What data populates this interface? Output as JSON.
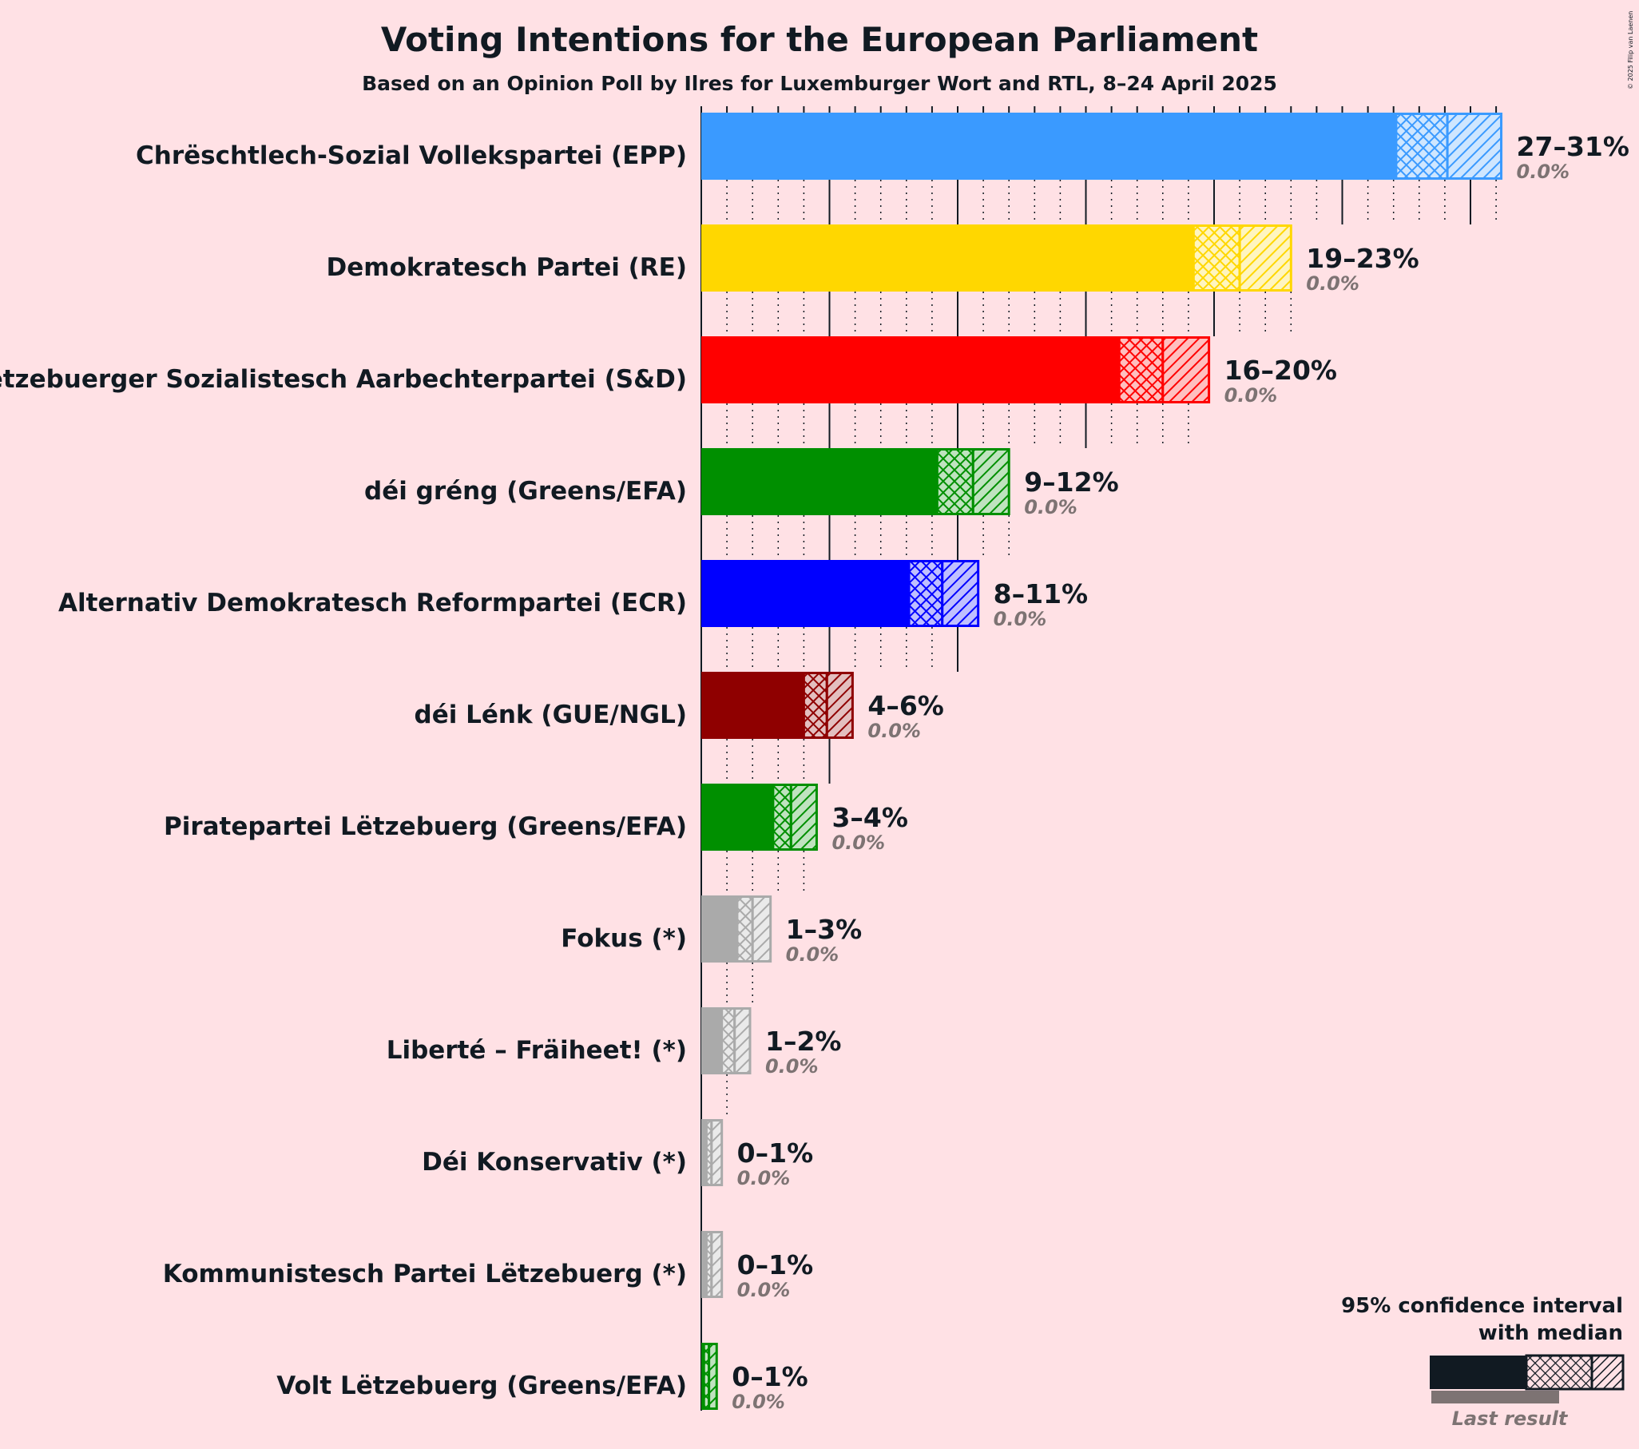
{
  "chart_data": {
    "type": "bar",
    "orientation": "horizontal",
    "title": "Voting Intentions for the European Parliament",
    "subtitle": "Based on an Opinion Poll by Ilres for Luxemburger Wort and RTL, 8–24 April 2025",
    "copyright": "© 2025 Filip van Laenen",
    "xlim": [
      0,
      31.5
    ],
    "grid": true,
    "legend": {
      "placement": "bottom-right",
      "line1": "95% confidence interval",
      "line2": "with median",
      "last_result": "Last result"
    },
    "series": [
      {
        "name": "Chrëschtlech-Sozial Vollekspartei (EPP)",
        "color": "#3A9AFF",
        "ci_low": 27.1,
        "median": 29.1,
        "ci_high": 31.2,
        "range_label": "27–31%",
        "last_result_label": "0.0%"
      },
      {
        "name": "Demokratesch Partei (RE)",
        "color": "#FFD700",
        "ci_low": 19.2,
        "median": 21.0,
        "ci_high": 23.0,
        "range_label": "19–23%",
        "last_result_label": "0.0%"
      },
      {
        "name": "Lëtzebuerger Sozialistesch Aarbechterpartei (S&D)",
        "color": "#FF0000",
        "ci_low": 16.3,
        "median": 18.0,
        "ci_high": 19.8,
        "range_label": "16–20%",
        "last_result_label": "0.0%"
      },
      {
        "name": "déi gréng (Greens/EFA)",
        "color": "#008F00",
        "ci_low": 9.2,
        "median": 10.6,
        "ci_high": 12.0,
        "range_label": "9–12%",
        "last_result_label": "0.0%"
      },
      {
        "name": "Alternativ Demokratesch Reformpartei (ECR)",
        "color": "#0000FF",
        "ci_low": 8.1,
        "median": 9.4,
        "ci_high": 10.8,
        "range_label": "8–11%",
        "last_result_label": "0.0%"
      },
      {
        "name": "déi Lénk (GUE/NGL)",
        "color": "#8F0000",
        "ci_low": 4.0,
        "median": 4.9,
        "ci_high": 5.9,
        "range_label": "4–6%",
        "last_result_label": "0.0%"
      },
      {
        "name": "Piratepartei Lëtzebuerg (Greens/EFA)",
        "color": "#008F00",
        "ci_low": 2.8,
        "median": 3.5,
        "ci_high": 4.5,
        "range_label": "3–4%",
        "last_result_label": "0.0%"
      },
      {
        "name": "Fokus (*)",
        "color": "#AAAAAA",
        "ci_low": 1.4,
        "median": 2.0,
        "ci_high": 2.7,
        "range_label": "1–3%",
        "last_result_label": "0.0%"
      },
      {
        "name": "Liberté – Fräiheet! (*)",
        "color": "#AAAAAA",
        "ci_low": 0.8,
        "median": 1.3,
        "ci_high": 1.9,
        "range_label": "1–2%",
        "last_result_label": "0.0%"
      },
      {
        "name": "Déi Konservativ (*)",
        "color": "#AAAAAA",
        "ci_low": 0.2,
        "median": 0.4,
        "ci_high": 0.8,
        "range_label": "0–1%",
        "last_result_label": "0.0%"
      },
      {
        "name": "Kommunistesch Partei Lëtzebuerg (*)",
        "color": "#AAAAAA",
        "ci_low": 0.2,
        "median": 0.4,
        "ci_high": 0.8,
        "range_label": "0–1%",
        "last_result_label": "0.0%"
      },
      {
        "name": "Volt Lëtzebuerg (Greens/EFA)",
        "color": "#008F00",
        "ci_low": 0.1,
        "median": 0.3,
        "ci_high": 0.6,
        "range_label": "0–1%",
        "last_result_label": "0.0%"
      }
    ]
  }
}
